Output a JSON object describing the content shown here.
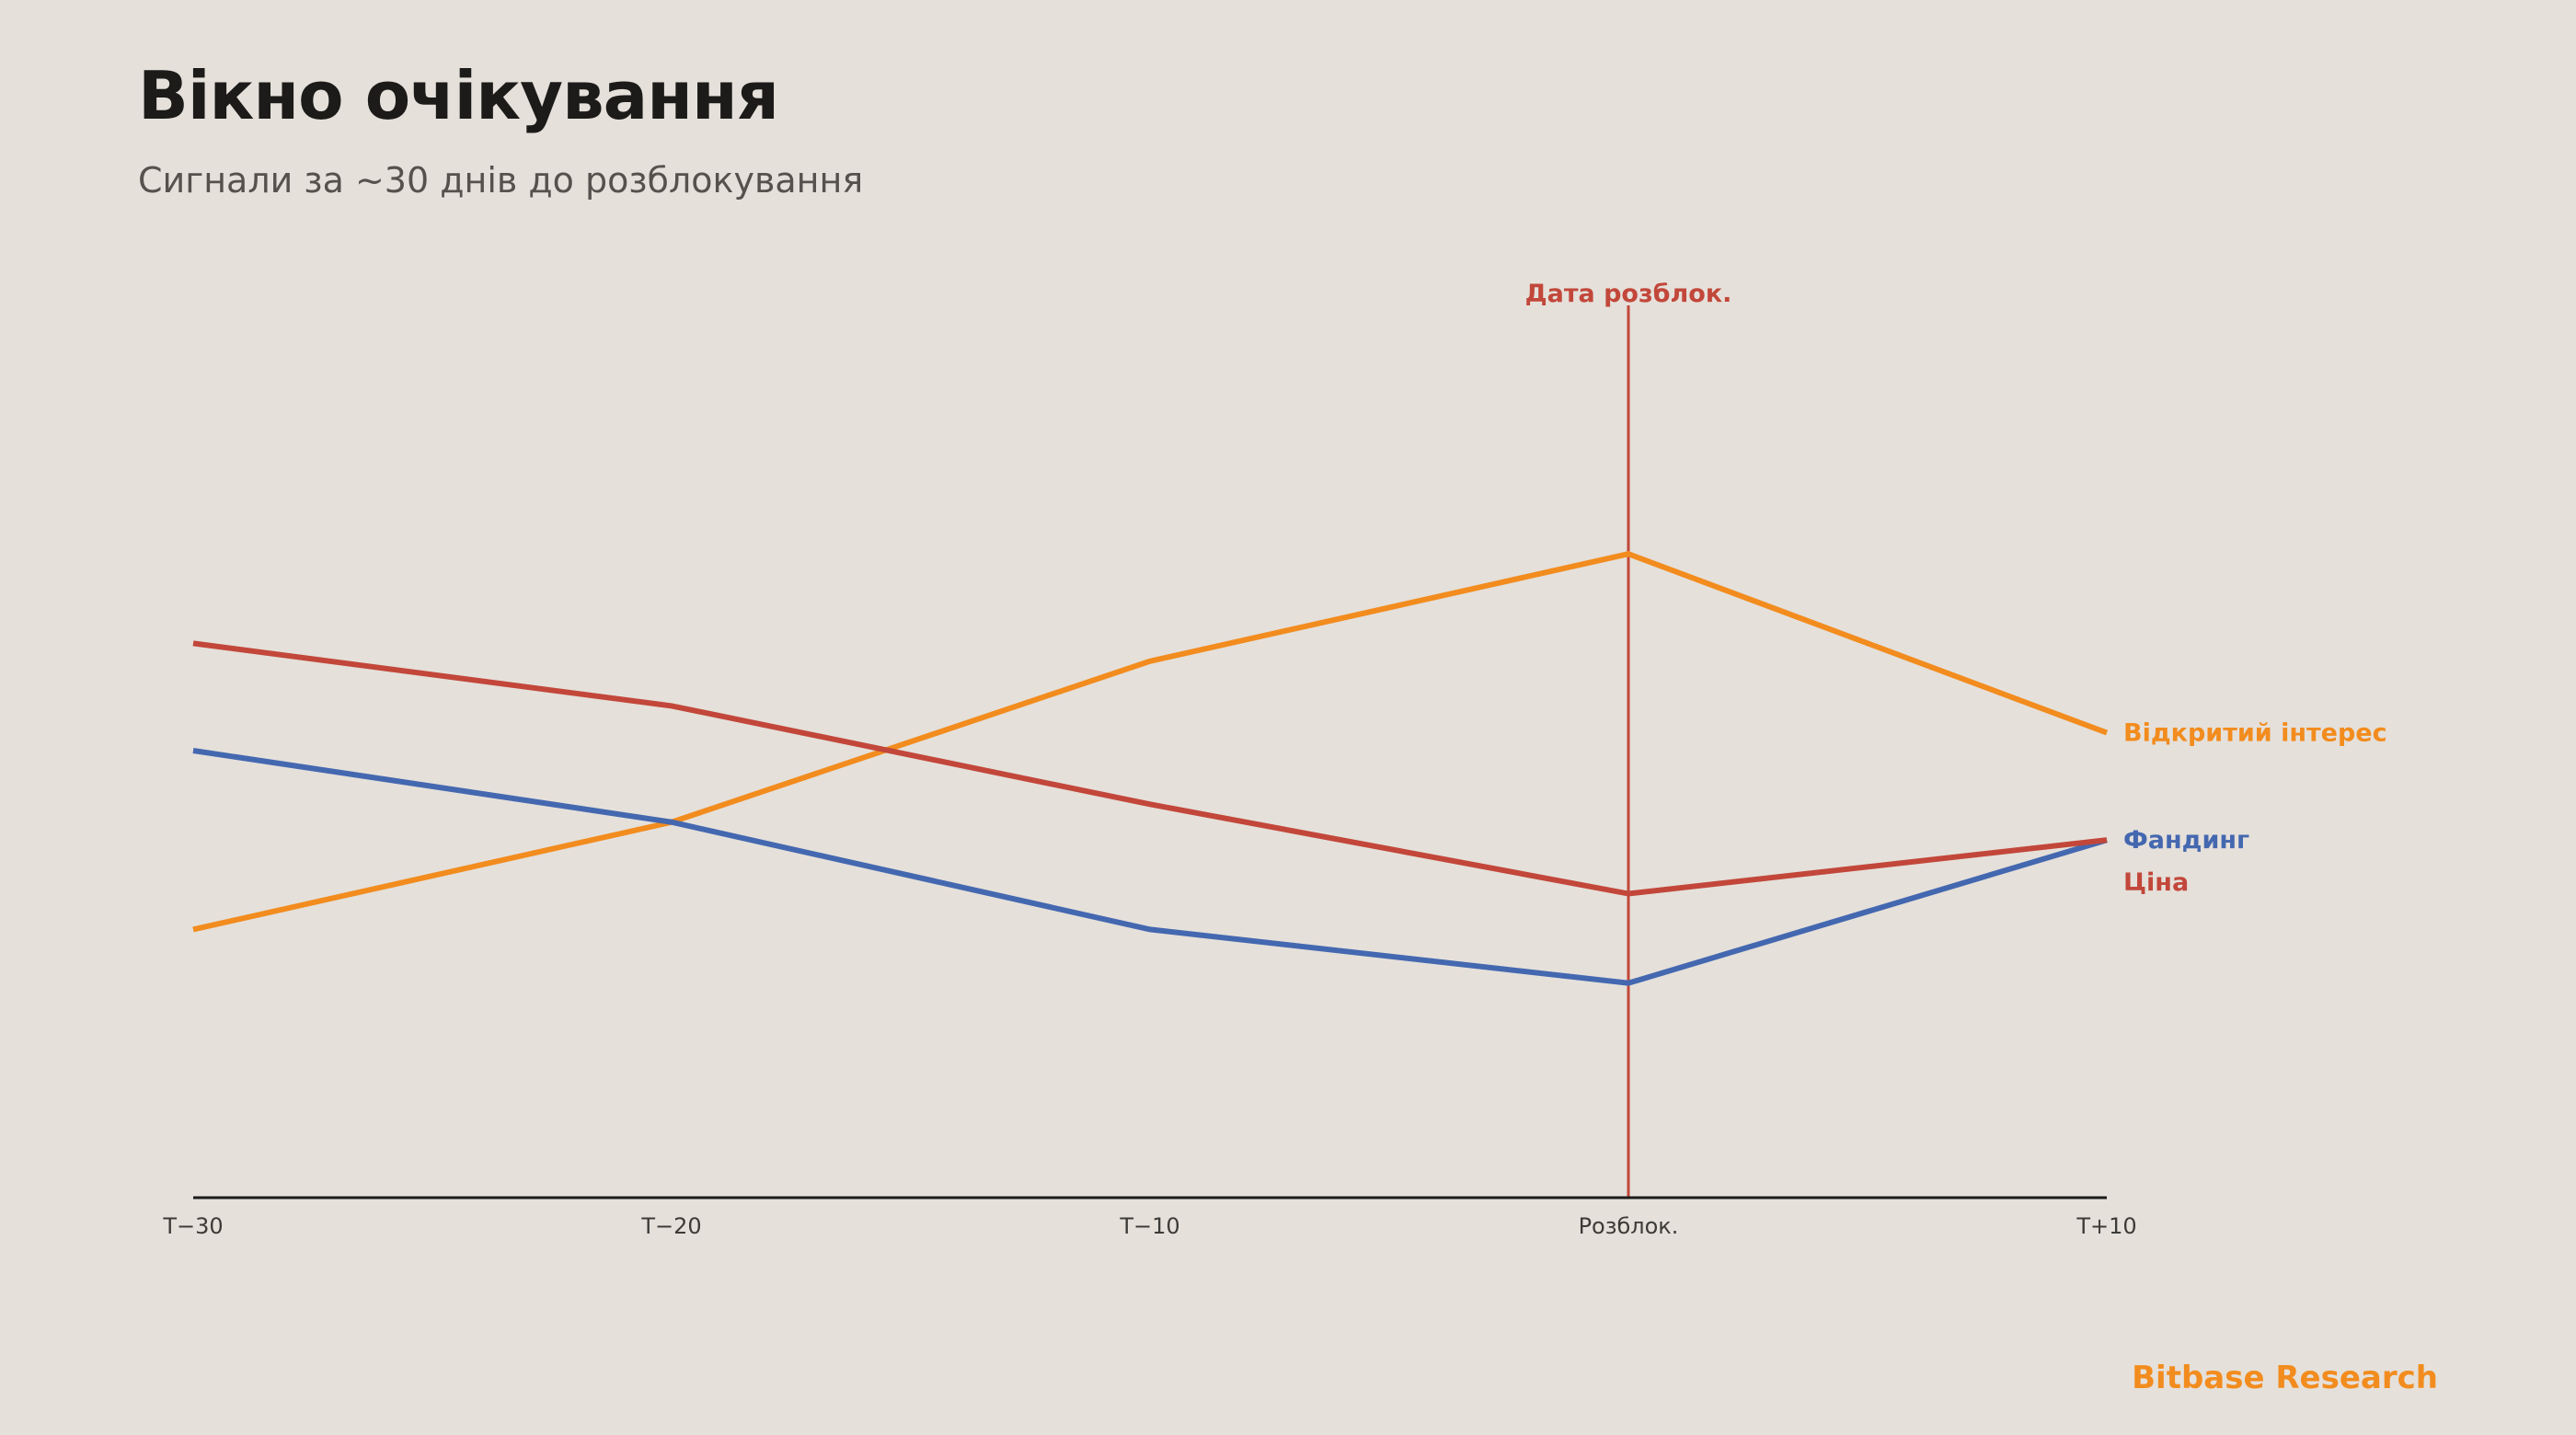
{
  "header": {
    "title": "Вікно очікування",
    "subtitle": "Сигнали за ~30 днів до розблокування"
  },
  "brand": {
    "name": "Bitbase Research",
    "color": "#f28c1e"
  },
  "chart_data": {
    "type": "line",
    "title": "Вікно очікування",
    "subtitle": "Сигнали за ~30 днів до розблокування",
    "xlabel": "",
    "ylabel": "",
    "categories": [
      "T−30",
      "T−20",
      "T−10",
      "Розблок.",
      "T+10"
    ],
    "y_axis_visible": false,
    "ylim": [
      0,
      100
    ],
    "grid": false,
    "legend": "direct labels at right end of lines",
    "series": [
      {
        "name": "Відкритий інтерес",
        "color": "#f28c1e",
        "values": [
          30,
          42,
          60,
          72,
          52
        ]
      },
      {
        "name": "Фандинг",
        "color": "#4468b0",
        "values": [
          50,
          42,
          30,
          24,
          40
        ]
      },
      {
        "name": "Ціна",
        "color": "#c2473a",
        "values": [
          62,
          55,
          44,
          34,
          40
        ]
      }
    ],
    "annotations": [
      {
        "type": "vertical-line",
        "category": "Розблок.",
        "label": "Дата розблок.",
        "color": "#c2473a"
      }
    ]
  }
}
